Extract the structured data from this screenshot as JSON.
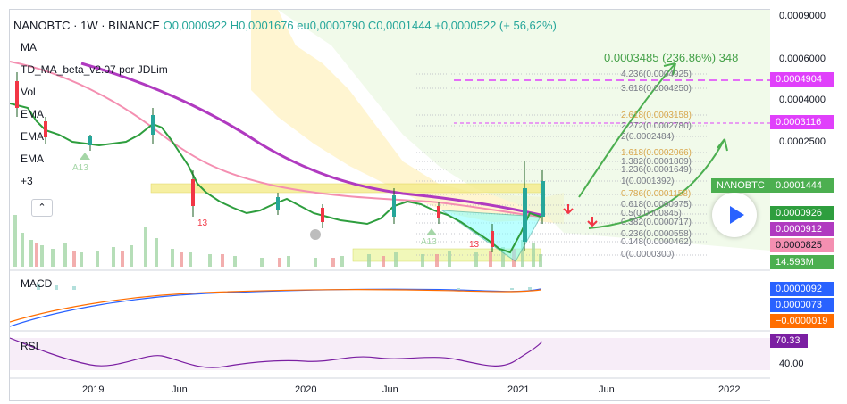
{
  "header": {
    "symbol": "NANOBTC · 1W · BINANCE",
    "o": "O0,0000922",
    "h": "H0,0001676",
    "l": "eu0,0000790",
    "c": "C0,0001444",
    "chg": "+0,0000522 (+ 56,62%)"
  },
  "indicators": [
    "MA",
    "TD_MA_beta_v2.07 por JDLim",
    "Vol",
    "EMA",
    "EMA",
    "EMA",
    "+3"
  ],
  "target_label": "0.0003485 (236.86%) 348",
  "fib_levels": [
    {
      "label": "4.236(0.0004925)",
      "color": "#787b86"
    },
    {
      "label": "3.618(0.0004250)",
      "color": "#787b86"
    },
    {
      "label": "2.618(0.0003158)",
      "color": "#d9a84e"
    },
    {
      "label": "2.272(0.0002780)",
      "color": "#787b86"
    },
    {
      "label": "2(0.0002484)",
      "color": "#787b86"
    },
    {
      "label": "1.618(0.0002066)",
      "color": "#d9a84e"
    },
    {
      "label": "1.382(0.0001809)",
      "color": "#787b86"
    },
    {
      "label": "1.236(0.0001649)",
      "color": "#787b86"
    },
    {
      "label": "1(0.0001392)",
      "color": "#787b86"
    },
    {
      "label": "0.786(0.0001158)",
      "color": "#d9a84e"
    },
    {
      "label": "0.618(0.0000975)",
      "color": "#787b86"
    },
    {
      "label": "0.5(0.0000845)",
      "color": "#787b86"
    },
    {
      "label": "0.382(0.0000717)",
      "color": "#787b86"
    },
    {
      "label": "0.236(0.0000558)",
      "color": "#787b86"
    },
    {
      "label": "0.148(0.0000462)",
      "color": "#787b86"
    },
    {
      "label": "0(0.0000300)",
      "color": "#787b86"
    }
  ],
  "marks": {
    "a13a": "A13",
    "a13b": "A13",
    "n13a": "13",
    "n13b": "13"
  },
  "price_axis": {
    "ticks": [
      "0.0009000",
      "0.0006000",
      "0.0004000",
      "0.0002500"
    ],
    "rsi_tick": "40.00"
  },
  "tags": {
    "t4904": "0.0004904",
    "t3116": "0.0003116",
    "symbol_tag": "NANOBTC",
    "t1444": "0.0001444",
    "t926": "0.0000926",
    "t912": "0.0000912",
    "t825": "0.0000825",
    "vol": "14.593M",
    "macd1": "0.0000092",
    "macd2": "0.0000073",
    "macd3": "−0.0000019",
    "rsi": "70.33"
  },
  "panels": {
    "macd": "MACD",
    "rsi": "RSI"
  },
  "time_axis": [
    "2019",
    "Jun",
    "2020",
    "Jun",
    "2021",
    "Jun",
    "2022"
  ],
  "colors": {
    "accent_green": "#4caf50",
    "magenta": "#e040fb",
    "red": "#f23645",
    "blue": "#2962ff",
    "purple": "#7b1fa2"
  }
}
